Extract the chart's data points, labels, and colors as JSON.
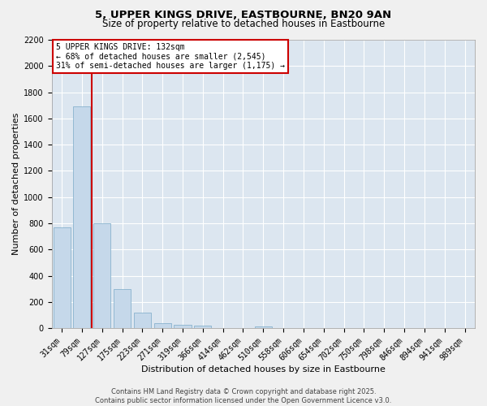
{
  "title": "5, UPPER KINGS DRIVE, EASTBOURNE, BN20 9AN",
  "subtitle": "Size of property relative to detached houses in Eastbourne",
  "xlabel": "Distribution of detached houses by size in Eastbourne",
  "ylabel": "Number of detached properties",
  "categories": [
    "31sqm",
    "79sqm",
    "127sqm",
    "175sqm",
    "223sqm",
    "271sqm",
    "319sqm",
    "366sqm",
    "414sqm",
    "462sqm",
    "510sqm",
    "558sqm",
    "606sqm",
    "654sqm",
    "702sqm",
    "750sqm",
    "798sqm",
    "846sqm",
    "894sqm",
    "941sqm",
    "989sqm"
  ],
  "values": [
    770,
    1690,
    800,
    300,
    120,
    38,
    28,
    22,
    0,
    0,
    15,
    0,
    0,
    0,
    0,
    0,
    0,
    0,
    0,
    0,
    0
  ],
  "bar_color": "#c5d8ea",
  "bar_edge_color": "#7aaac8",
  "vline_color": "#cc0000",
  "annotation_text": "5 UPPER KINGS DRIVE: 132sqm\n← 68% of detached houses are smaller (2,545)\n31% of semi-detached houses are larger (1,175) →",
  "annotation_box_edgecolor": "#cc0000",
  "ylim": [
    0,
    2200
  ],
  "yticks": [
    0,
    200,
    400,
    600,
    800,
    1000,
    1200,
    1400,
    1600,
    1800,
    2000,
    2200
  ],
  "background_color": "#dce6f0",
  "grid_color": "#ffffff",
  "fig_background": "#f0f0f0",
  "footer_line1": "Contains HM Land Registry data © Crown copyright and database right 2025.",
  "footer_line2": "Contains public sector information licensed under the Open Government Licence v3.0.",
  "title_fontsize": 9.5,
  "subtitle_fontsize": 8.5,
  "xlabel_fontsize": 8,
  "ylabel_fontsize": 8,
  "tick_fontsize": 7,
  "annot_fontsize": 7,
  "footer_fontsize": 6
}
